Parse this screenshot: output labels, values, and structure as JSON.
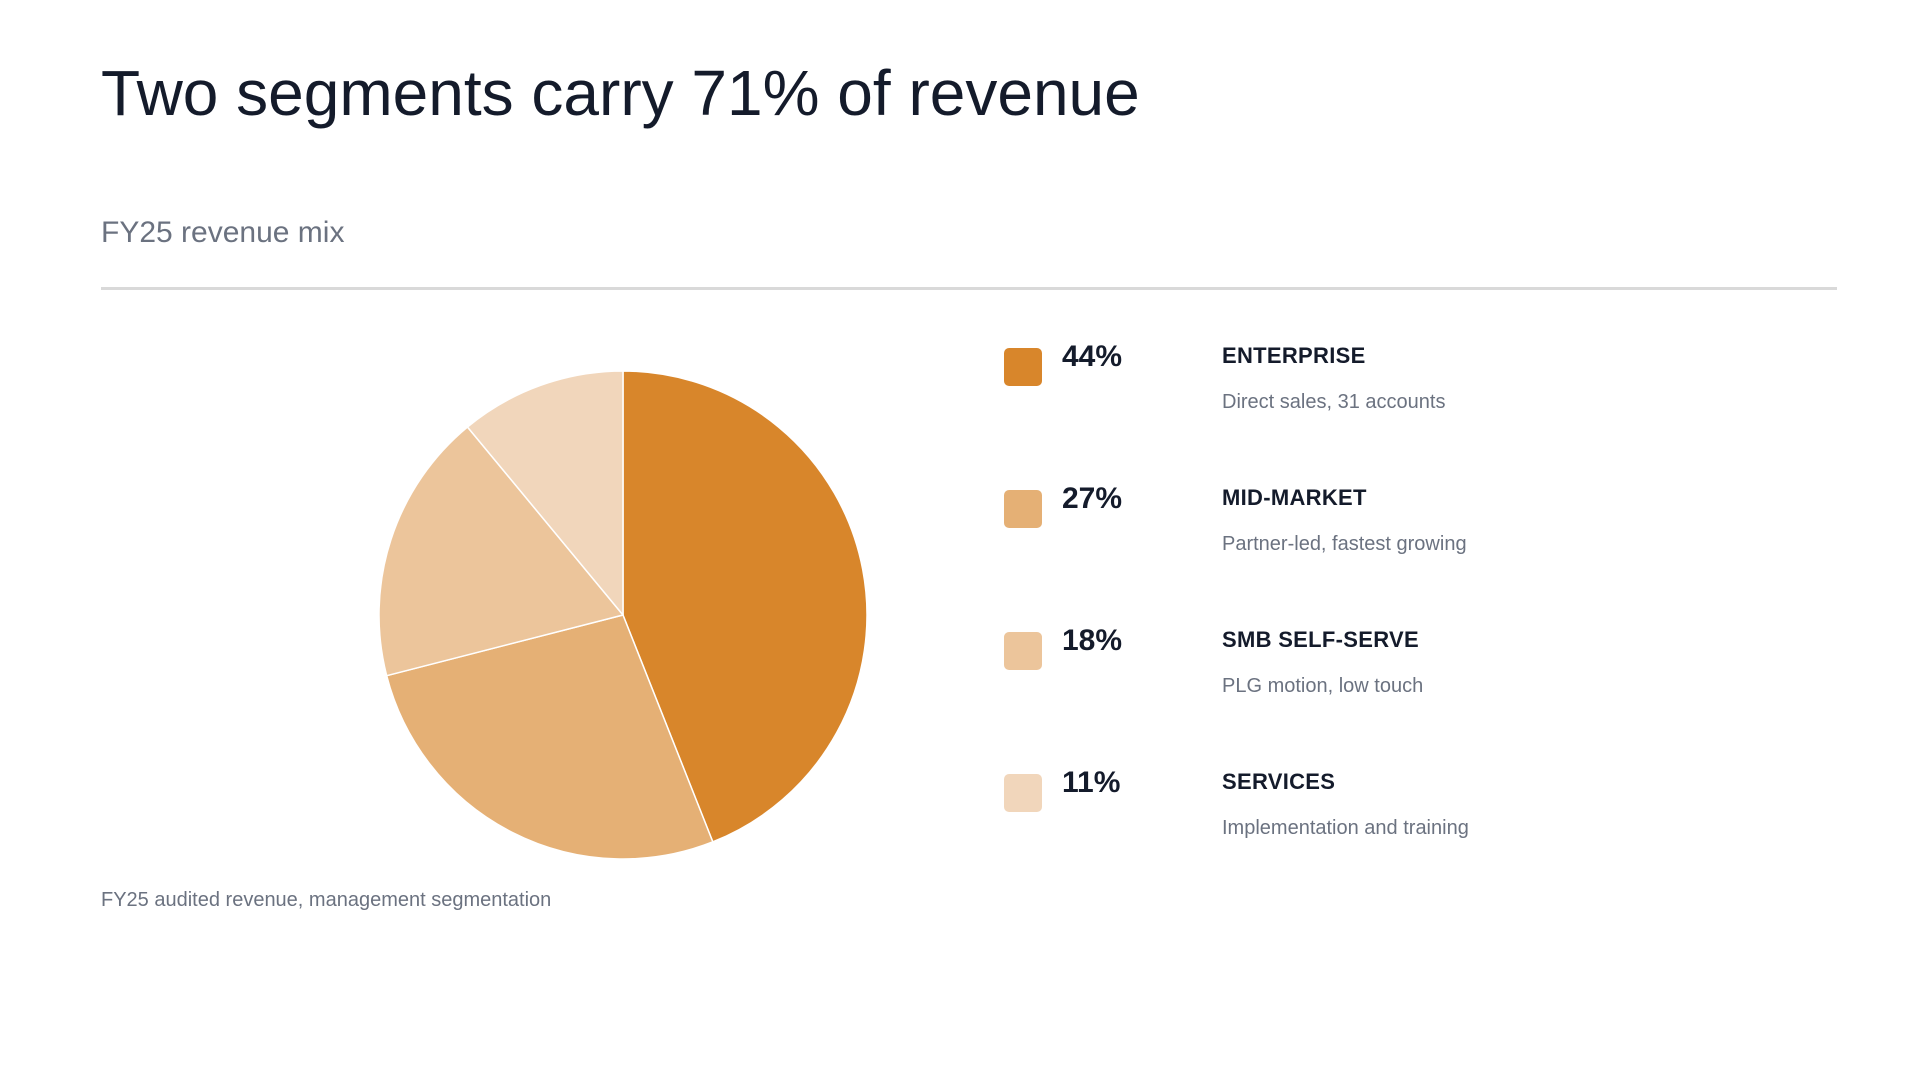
{
  "title": "Two segments carry 71% of revenue",
  "subtitle": "FY25 revenue mix",
  "footnote": "FY25 audited revenue, management segmentation",
  "chart_data": {
    "type": "pie",
    "title": "",
    "slices": [
      {
        "label": "ENTERPRISE",
        "value": 44,
        "value_label": "44%",
        "description": "Direct sales, 31 accounts",
        "color": "#d8862b"
      },
      {
        "label": "MID-MARKET",
        "value": 27,
        "value_label": "27%",
        "description": "Partner-led, fastest growing",
        "color": "#e5b075"
      },
      {
        "label": "SMB SELF-SERVE",
        "value": 18,
        "value_label": "18%",
        "description": "PLG motion, low touch",
        "color": "#ecc59b"
      },
      {
        "label": "SERVICES",
        "value": 11,
        "value_label": "11%",
        "description": "Implementation and training",
        "color": "#f1d6bb"
      }
    ],
    "start_angle": "12 o'clock",
    "direction": "clockwise",
    "legend_position": "right"
  }
}
